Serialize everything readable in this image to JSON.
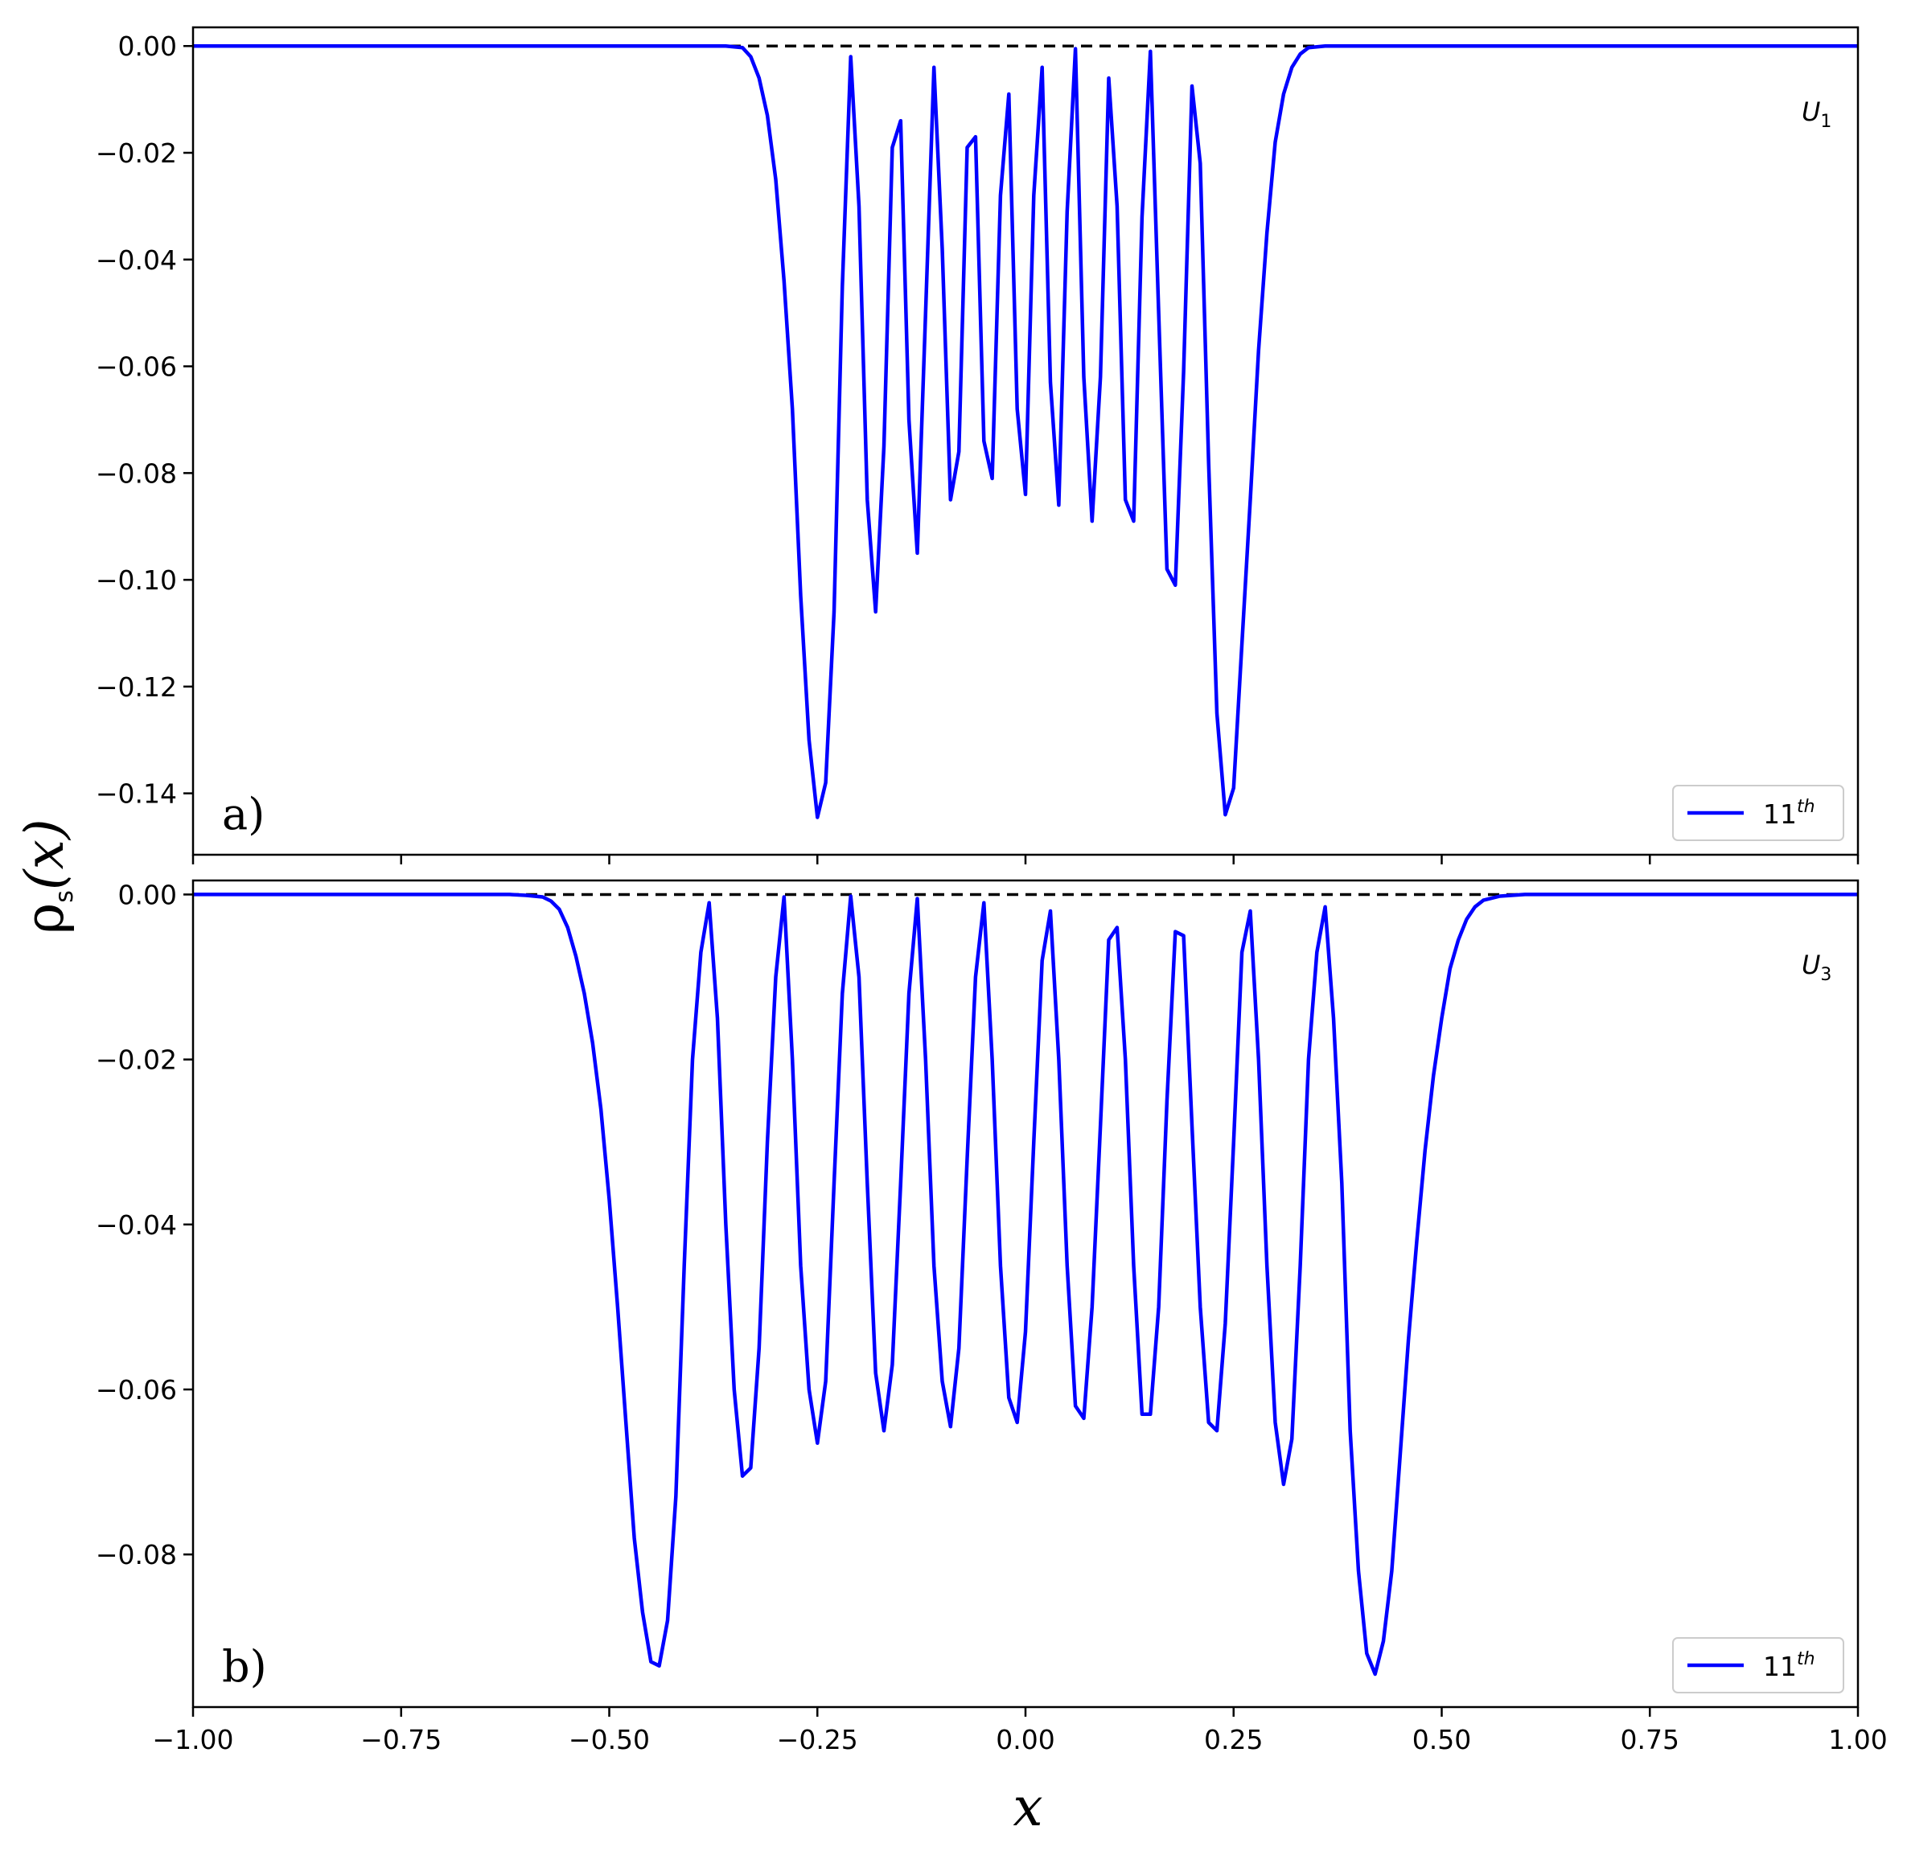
{
  "chart_data": [
    {
      "type": "line",
      "panel_label": "a)",
      "corner_label": {
        "main": "U",
        "sub": "1"
      },
      "legend": {
        "label": "11",
        "sup": "th",
        "placement": "lower-right"
      },
      "xlim": [
        -1.0,
        1.0
      ],
      "ylim": [
        -0.1515,
        0.0035
      ],
      "y_ticks": [
        "0.00",
        "−0.02",
        "−0.04",
        "−0.06",
        "−0.08",
        "−0.10",
        "−0.12",
        "−0.14"
      ],
      "y_tick_values": [
        0.0,
        -0.02,
        -0.04,
        -0.06,
        -0.08,
        -0.1,
        -0.12,
        -0.14
      ],
      "x_tick_values": [
        -1.0,
        -0.75,
        -0.5,
        -0.25,
        0.0,
        0.25,
        0.5,
        0.75,
        1.0
      ],
      "show_x_tick_labels": false,
      "reference_line": {
        "y": 0.0,
        "style": "dashed",
        "color": "#000000"
      },
      "series": [
        {
          "color": "#0000ff",
          "points": [
            [
              -1.0,
              0.0
            ],
            [
              -0.36,
              0.0
            ],
            [
              -0.34,
              -0.0003
            ],
            [
              -0.33,
              -0.002
            ],
            [
              -0.32,
              -0.006
            ],
            [
              -0.31,
              -0.013
            ],
            [
              -0.3,
              -0.025
            ],
            [
              -0.29,
              -0.044
            ],
            [
              -0.28,
              -0.068
            ],
            [
              -0.27,
              -0.103
            ],
            [
              -0.26,
              -0.13
            ],
            [
              -0.25,
              -0.1445
            ],
            [
              -0.24,
              -0.138
            ],
            [
              -0.23,
              -0.106
            ],
            [
              -0.22,
              -0.045
            ],
            [
              -0.21,
              -0.002
            ],
            [
              -0.2,
              -0.03
            ],
            [
              -0.19,
              -0.085
            ],
            [
              -0.18,
              -0.106
            ],
            [
              -0.17,
              -0.075
            ],
            [
              -0.16,
              -0.019
            ],
            [
              -0.15,
              -0.014
            ],
            [
              -0.14,
              -0.07
            ],
            [
              -0.13,
              -0.095
            ],
            [
              -0.12,
              -0.05
            ],
            [
              -0.11,
              -0.004
            ],
            [
              -0.1,
              -0.038
            ],
            [
              -0.09,
              -0.085
            ],
            [
              -0.08,
              -0.076
            ],
            [
              -0.07,
              -0.019
            ],
            [
              -0.06,
              -0.017
            ],
            [
              -0.05,
              -0.074
            ],
            [
              -0.04,
              -0.081
            ],
            [
              -0.03,
              -0.028
            ],
            [
              -0.02,
              -0.009
            ],
            [
              -0.01,
              -0.068
            ],
            [
              0.0,
              -0.084
            ],
            [
              0.01,
              -0.028
            ],
            [
              0.02,
              -0.004
            ],
            [
              0.03,
              -0.063
            ],
            [
              0.04,
              -0.086
            ],
            [
              0.05,
              -0.031
            ],
            [
              0.06,
              -0.0005
            ],
            [
              0.07,
              -0.062
            ],
            [
              0.08,
              -0.089
            ],
            [
              0.09,
              -0.062
            ],
            [
              0.1,
              -0.006
            ],
            [
              0.11,
              -0.03
            ],
            [
              0.12,
              -0.085
            ],
            [
              0.13,
              -0.089
            ],
            [
              0.14,
              -0.032
            ],
            [
              0.15,
              -0.001
            ],
            [
              0.16,
              -0.05
            ],
            [
              0.17,
              -0.098
            ],
            [
              0.18,
              -0.101
            ],
            [
              0.19,
              -0.061
            ],
            [
              0.2,
              -0.0075
            ],
            [
              0.21,
              -0.022
            ],
            [
              0.22,
              -0.078
            ],
            [
              0.23,
              -0.125
            ],
            [
              0.24,
              -0.144
            ],
            [
              0.25,
              -0.139
            ],
            [
              0.26,
              -0.112
            ],
            [
              0.27,
              -0.085
            ],
            [
              0.28,
              -0.057
            ],
            [
              0.29,
              -0.035
            ],
            [
              0.3,
              -0.018
            ],
            [
              0.31,
              -0.009
            ],
            [
              0.32,
              -0.004
            ],
            [
              0.33,
              -0.0015
            ],
            [
              0.34,
              -0.0003
            ],
            [
              0.36,
              0.0
            ],
            [
              1.0,
              0.0
            ]
          ]
        }
      ]
    },
    {
      "type": "line",
      "panel_label": "b)",
      "corner_label": {
        "main": "U",
        "sub": "3"
      },
      "legend": {
        "label": "11",
        "sup": "th",
        "placement": "lower-right"
      },
      "xlim": [
        -1.0,
        1.0
      ],
      "ylim": [
        -0.0985,
        0.0017
      ],
      "y_ticks": [
        "0.00",
        "−0.02",
        "−0.04",
        "−0.06",
        "−0.08"
      ],
      "y_tick_values": [
        0.0,
        -0.02,
        -0.04,
        -0.06,
        -0.08
      ],
      "x_ticks": [
        "−1.00",
        "−0.75",
        "−0.50",
        "−0.25",
        "0.00",
        "0.25",
        "0.50",
        "0.75",
        "1.00"
      ],
      "x_tick_values": [
        -1.0,
        -0.75,
        -0.5,
        -0.25,
        0.0,
        0.25,
        0.5,
        0.75,
        1.0
      ],
      "show_x_tick_labels": true,
      "xlabel": "x",
      "reference_line": {
        "y": 0.0,
        "style": "dashed",
        "color": "#000000"
      },
      "series": [
        {
          "color": "#0000ff",
          "points": [
            [
              -1.0,
              0.0
            ],
            [
              -0.62,
              0.0
            ],
            [
              -0.6,
              -0.0001
            ],
            [
              -0.58,
              -0.0003
            ],
            [
              -0.57,
              -0.0008
            ],
            [
              -0.56,
              -0.0018
            ],
            [
              -0.55,
              -0.004
            ],
            [
              -0.54,
              -0.0075
            ],
            [
              -0.53,
              -0.012
            ],
            [
              -0.52,
              -0.018
            ],
            [
              -0.51,
              -0.026
            ],
            [
              -0.5,
              -0.037
            ],
            [
              -0.49,
              -0.05
            ],
            [
              -0.48,
              -0.064
            ],
            [
              -0.47,
              -0.078
            ],
            [
              -0.46,
              -0.087
            ],
            [
              -0.45,
              -0.093
            ],
            [
              -0.44,
              -0.0935
            ],
            [
              -0.43,
              -0.088
            ],
            [
              -0.42,
              -0.073
            ],
            [
              -0.41,
              -0.045
            ],
            [
              -0.4,
              -0.02
            ],
            [
              -0.39,
              -0.007
            ],
            [
              -0.38,
              -0.001
            ],
            [
              -0.37,
              -0.015
            ],
            [
              -0.36,
              -0.04
            ],
            [
              -0.35,
              -0.06
            ],
            [
              -0.34,
              -0.0705
            ],
            [
              -0.33,
              -0.0695
            ],
            [
              -0.32,
              -0.055
            ],
            [
              -0.31,
              -0.03
            ],
            [
              -0.3,
              -0.01
            ],
            [
              -0.29,
              -0.0003
            ],
            [
              -0.28,
              -0.02
            ],
            [
              -0.27,
              -0.045
            ],
            [
              -0.26,
              -0.06
            ],
            [
              -0.25,
              -0.0665
            ],
            [
              -0.24,
              -0.059
            ],
            [
              -0.23,
              -0.035
            ],
            [
              -0.22,
              -0.012
            ],
            [
              -0.21,
              -0.0002
            ],
            [
              -0.2,
              -0.01
            ],
            [
              -0.19,
              -0.035
            ],
            [
              -0.18,
              -0.058
            ],
            [
              -0.17,
              -0.065
            ],
            [
              -0.16,
              -0.057
            ],
            [
              -0.15,
              -0.035
            ],
            [
              -0.14,
              -0.012
            ],
            [
              -0.13,
              -0.0005
            ],
            [
              -0.12,
              -0.02
            ],
            [
              -0.11,
              -0.045
            ],
            [
              -0.1,
              -0.059
            ],
            [
              -0.09,
              -0.0645
            ],
            [
              -0.08,
              -0.055
            ],
            [
              -0.07,
              -0.032
            ],
            [
              -0.06,
              -0.01
            ],
            [
              -0.05,
              -0.001
            ],
            [
              -0.04,
              -0.02
            ],
            [
              -0.03,
              -0.045
            ],
            [
              -0.02,
              -0.061
            ],
            [
              -0.01,
              -0.064
            ],
            [
              0.0,
              -0.053
            ],
            [
              0.01,
              -0.03
            ],
            [
              0.02,
              -0.008
            ],
            [
              0.03,
              -0.002
            ],
            [
              0.04,
              -0.02
            ],
            [
              0.05,
              -0.045
            ],
            [
              0.06,
              -0.062
            ],
            [
              0.07,
              -0.0635
            ],
            [
              0.08,
              -0.05
            ],
            [
              0.09,
              -0.028
            ],
            [
              0.1,
              -0.0055
            ],
            [
              0.11,
              -0.004
            ],
            [
              0.12,
              -0.02
            ],
            [
              0.13,
              -0.045
            ],
            [
              0.14,
              -0.063
            ],
            [
              0.15,
              -0.063
            ],
            [
              0.16,
              -0.05
            ],
            [
              0.17,
              -0.025
            ],
            [
              0.18,
              -0.0045
            ],
            [
              0.19,
              -0.005
            ],
            [
              0.2,
              -0.028
            ],
            [
              0.21,
              -0.05
            ],
            [
              0.22,
              -0.064
            ],
            [
              0.23,
              -0.065
            ],
            [
              0.24,
              -0.052
            ],
            [
              0.25,
              -0.03
            ],
            [
              0.26,
              -0.007
            ],
            [
              0.27,
              -0.002
            ],
            [
              0.28,
              -0.02
            ],
            [
              0.29,
              -0.045
            ],
            [
              0.3,
              -0.064
            ],
            [
              0.31,
              -0.0715
            ],
            [
              0.32,
              -0.066
            ],
            [
              0.33,
              -0.045
            ],
            [
              0.34,
              -0.02
            ],
            [
              0.35,
              -0.007
            ],
            [
              0.36,
              -0.0015
            ],
            [
              0.37,
              -0.015
            ],
            [
              0.38,
              -0.035
            ],
            [
              0.39,
              -0.065
            ],
            [
              0.4,
              -0.082
            ],
            [
              0.41,
              -0.092
            ],
            [
              0.42,
              -0.0945
            ],
            [
              0.43,
              -0.0905
            ],
            [
              0.44,
              -0.082
            ],
            [
              0.45,
              -0.068
            ],
            [
              0.46,
              -0.054
            ],
            [
              0.47,
              -0.042
            ],
            [
              0.48,
              -0.031
            ],
            [
              0.49,
              -0.022
            ],
            [
              0.5,
              -0.015
            ],
            [
              0.51,
              -0.009
            ],
            [
              0.52,
              -0.0055
            ],
            [
              0.53,
              -0.003
            ],
            [
              0.54,
              -0.0015
            ],
            [
              0.55,
              -0.0007
            ],
            [
              0.57,
              -0.0002
            ],
            [
              0.6,
              0.0
            ],
            [
              1.0,
              0.0
            ]
          ]
        }
      ]
    }
  ],
  "shared_ylabel": {
    "main": "ρ",
    "sub": "s",
    "rest": "(x)"
  }
}
